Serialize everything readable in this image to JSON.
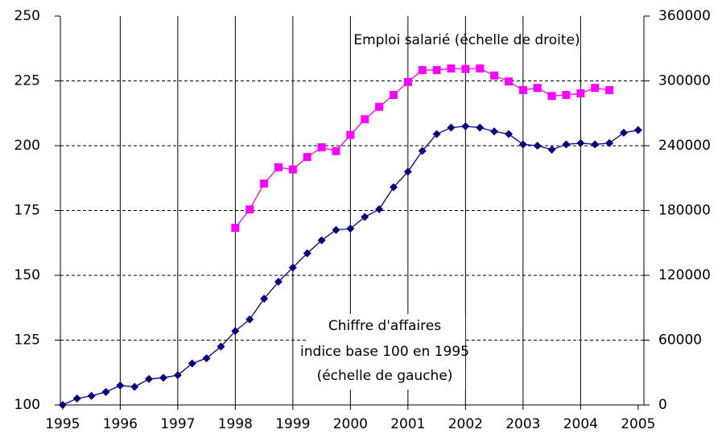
{
  "chart_data": {
    "type": "line",
    "xlim": [
      1994.96,
      2005.1
    ],
    "xticks": [
      1995,
      1996,
      1997,
      1998,
      1999,
      2000,
      2001,
      2002,
      2003,
      2004,
      2005
    ],
    "ylim": [
      100,
      250
    ],
    "yticks": [
      100,
      125,
      150,
      175,
      200,
      225,
      250
    ],
    "y2lim": [
      0,
      360000
    ],
    "y2ticks": [
      0,
      60000,
      120000,
      180000,
      240000,
      300000,
      360000
    ],
    "grid": true,
    "annotations": [
      "Emploi salarié (échelle de droite)",
      "Chiffre d'affaires",
      "indice base 100 en 1995",
      "(échelle de gauche)"
    ],
    "series": [
      {
        "color": "#000080",
        "marker": "diamond",
        "x": [
          1995,
          1995.25,
          1995.5,
          1995.75,
          1996,
          1996.25,
          1996.5,
          1996.75,
          1997,
          1997.25,
          1997.5,
          1997.75,
          1998,
          1998.25,
          1998.5,
          1998.75,
          1999,
          1999.25,
          1999.5,
          1999.75,
          2000,
          2000.25,
          2000.5,
          2000.75,
          2001,
          2001.25,
          2001.5,
          2001.75,
          2002,
          2002.25,
          2002.5,
          2002.75,
          2003,
          2003.25,
          2003.5,
          2003.75,
          2004,
          2004.25,
          2004.5,
          2004.75,
          2005
        ],
        "values": [
          100,
          102.5,
          103.5,
          105,
          107.5,
          107,
          110,
          110.5,
          111.5,
          116,
          118,
          122.5,
          128.5,
          133,
          141,
          147.5,
          153,
          158.5,
          163.5,
          167.5,
          168,
          172.5,
          175.5,
          184,
          190,
          198,
          204.5,
          207,
          207.5,
          207,
          205.5,
          204.5,
          200.5,
          200,
          198.5,
          200.5,
          201,
          200.5,
          201,
          205,
          206
        ]
      },
      {
        "color": "#ff00ff",
        "marker": "square",
        "axis": "y2",
        "x": [
          1998,
          1998.25,
          1998.5,
          1998.75,
          1999,
          1999.25,
          1999.5,
          1999.75,
          2000,
          2000.25,
          2000.5,
          2000.75,
          2001,
          2001.25,
          2001.5,
          2001.75,
          2002,
          2002.25,
          2002.5,
          2002.75,
          2003,
          2003.25,
          2003.5,
          2003.75,
          2004,
          2004.25,
          2004.5
        ],
        "values": [
          164000,
          181000,
          205000,
          220000,
          218000,
          229500,
          238500,
          235000,
          250000,
          264500,
          276000,
          287000,
          299000,
          310000,
          310000,
          311500,
          311000,
          311500,
          305000,
          299500,
          291500,
          293500,
          286000,
          287000,
          288500,
          293500,
          291500
        ]
      }
    ]
  }
}
